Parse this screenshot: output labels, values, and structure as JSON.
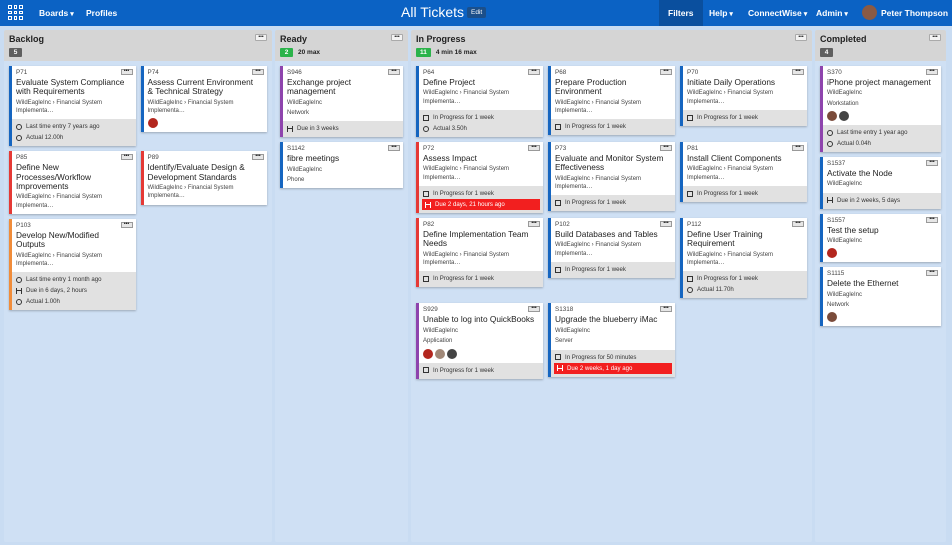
{
  "header": {
    "nav": [
      "Boards",
      "Profiles"
    ],
    "title": "All Tickets",
    "edit": "Edit",
    "filters": "Filters",
    "menus": [
      "Help",
      "ConnectWise",
      "Admin"
    ],
    "user": "Peter Thompson"
  },
  "columns": [
    {
      "title": "Backlog",
      "count": "5",
      "count_color": "#5f5f5f",
      "cards": [
        {
          "id": "P71",
          "title": "Evaluate System Compliance with Requirements",
          "company": "WildEagleInc › Financial System Implementa…",
          "color": "#1565c0",
          "last_entry": "Last time entry 7 years ago",
          "actual": "Actual 12.00h"
        },
        {
          "id": "P74",
          "title": "Assess Current Environment & Technical Strategy",
          "company": "WildEagleInc › Financial System Implementa…",
          "color": "#1565c0",
          "avatars": [
            "#b3261e"
          ]
        },
        {
          "id": "P85",
          "title": "Define New Processes/Workflow Improvements",
          "company": "WildEagleInc › Financial System Implementa…",
          "color": "#e53935"
        },
        {
          "id": "P89",
          "title": "Identify/Evaluate Design & Development Standards",
          "company": "WildEagleInc › Financial System Implementa…",
          "color": "#e53935"
        },
        {
          "id": "P103",
          "title": "Develop New/Modified Outputs",
          "company": "WildEagleInc › Financial System Implementa…",
          "color": "#f08c3a",
          "last_entry": "Last time entry 1 month ago",
          "due": "Due in 6 days, 2 hours",
          "actual": "Actual 1.00h"
        }
      ]
    },
    {
      "title": "Ready",
      "count": "2",
      "count_color": "#2bb34a",
      "wip": "20 max",
      "cards": [
        {
          "id": "S946",
          "title": "Exchange project management",
          "company": "WildEagleInc",
          "type": "Network",
          "color": "#8e44ad",
          "due": "Due in 3 weeks"
        },
        {
          "id": "S1142",
          "title": "fibre meetings",
          "company": "WildEagleInc",
          "type": "Phone",
          "color": "#1565c0"
        }
      ]
    },
    {
      "title": "In Progress",
      "count": "11",
      "count_color": "#2bb34a",
      "wip": "4 min 16 max",
      "cards": [
        {
          "id": "P64",
          "title": "Define Project",
          "company": "WildEagleInc › Financial System Implementa…",
          "color": "#1565c0",
          "status": "In Progress for 1 week",
          "actual": "Actual 3.50h"
        },
        {
          "id": "P68",
          "title": "Prepare Production Environment",
          "company": "WildEagleInc › Financial System Implementa…",
          "color": "#1565c0",
          "status": "In Progress for 1 week"
        },
        {
          "id": "P70",
          "title": "Initiate Daily Operations",
          "company": "WildEagleInc › Financial System Implementa…",
          "color": "#1565c0",
          "status": "In Progress for 1 week"
        },
        {
          "id": "P72",
          "title": "Assess Impact",
          "company": "WildEagleInc › Financial System Implementa…",
          "color": "#e53935",
          "status": "In Progress for 1 week",
          "due": "Due 2 days, 21 hours ago",
          "overdue": true
        },
        {
          "id": "P73",
          "title": "Evaluate and Monitor System Effectiveness",
          "company": "WildEagleInc › Financial System Implementa…",
          "color": "#1565c0",
          "status": "In Progress for 1 week"
        },
        {
          "id": "P81",
          "title": "Install Client Components",
          "company": "WildEagleInc › Financial System Implementa…",
          "color": "#1565c0",
          "status": "In Progress for 1 week"
        },
        {
          "id": "P82",
          "title": "Define Implementation Team Needs",
          "company": "WildEagleInc › Financial System Implementa…",
          "color": "#e53935",
          "status": "In Progress for 1 week"
        },
        {
          "id": "P102",
          "title": "Build Databases and Tables",
          "company": "WildEagleInc › Financial System Implementa…",
          "color": "#1565c0",
          "status": "In Progress for 1 week"
        },
        {
          "id": "P112",
          "title": "Define User Training Requirement",
          "company": "WildEagleInc › Financial System Implementa…",
          "color": "#1565c0",
          "status": "In Progress for 1 week",
          "actual": "Actual 11.70h"
        },
        {
          "id": "S929",
          "title": "Unable to log into QuickBooks",
          "company": "WildEagleInc",
          "type": "Application",
          "color": "#8e44ad",
          "avatars": [
            "#b3261e",
            "#a08878",
            "#444444"
          ],
          "status": "In Progress for 1 week"
        },
        {
          "id": "S1318",
          "title": "Upgrade the blueberry iMac",
          "company": "WildEagleInc",
          "type": "Server",
          "color": "#1565c0",
          "status": "In Progress for 50 minutes",
          "due": "Due 2 weeks, 1 day ago",
          "overdue": true
        }
      ]
    },
    {
      "title": "Completed",
      "count": "4",
      "count_color": "#5f5f5f",
      "cards": [
        {
          "id": "S370",
          "title": "iPhone project management",
          "company": "WildEagleInc",
          "type": "Workstation",
          "color": "#8e44ad",
          "avatars": [
            "#7a4b3a",
            "#444444"
          ],
          "last_entry": "Last time entry 1 year ago",
          "actual": "Actual 0.04h"
        },
        {
          "id": "S1537",
          "title": "Activate the Node",
          "company": "WildEagleInc",
          "color": "#1565c0",
          "due": "Due in 2 weeks, 5 days"
        },
        {
          "id": "S1557",
          "title": "Test the setup",
          "company": "WildEagleInc",
          "color": "#1565c0",
          "avatars": [
            "#b3261e"
          ]
        },
        {
          "id": "S1115",
          "title": "Delete the Ethernet",
          "company": "WildEagleInc",
          "type": "Network",
          "color": "#1565c0",
          "avatars": [
            "#7a4b3a"
          ]
        }
      ]
    }
  ]
}
